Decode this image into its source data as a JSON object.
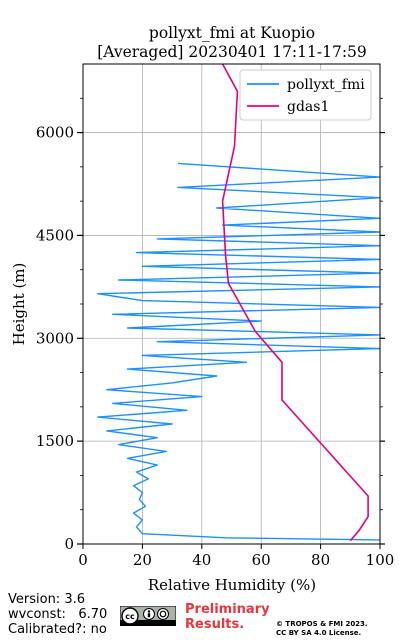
{
  "chart_data": {
    "type": "line",
    "title_line1": "pollyxt_fmi at Kuopio",
    "title_line2": "[Averaged] 20230401 17:11-17:59",
    "xlabel": "Relative Humidity (%)",
    "ylabel": "Height (m)",
    "xlim": [
      0,
      100
    ],
    "ylim": [
      0,
      7000
    ],
    "xticks": [
      "0",
      "20",
      "40",
      "60",
      "80",
      "100"
    ],
    "yticks": [
      "0",
      "1500",
      "3000",
      "4500",
      "6000"
    ],
    "grid": true,
    "legend_position": "top-right",
    "series": [
      {
        "name": "pollyxt_fmi",
        "color": "#1e90ff",
        "points": [
          [
            100,
            60
          ],
          [
            48,
            90
          ],
          [
            20,
            150
          ],
          [
            18,
            250
          ],
          [
            20,
            350
          ],
          [
            17,
            450
          ],
          [
            21,
            550
          ],
          [
            19,
            650
          ],
          [
            20,
            750
          ],
          [
            17,
            850
          ],
          [
            22,
            950
          ],
          [
            18,
            1050
          ],
          [
            25,
            1150
          ],
          [
            15,
            1250
          ],
          [
            28,
            1350
          ],
          [
            12,
            1450
          ],
          [
            25,
            1550
          ],
          [
            8,
            1650
          ],
          [
            30,
            1750
          ],
          [
            5,
            1850
          ],
          [
            35,
            1950
          ],
          [
            10,
            2050
          ],
          [
            40,
            2150
          ],
          [
            8,
            2250
          ],
          [
            30,
            2350
          ],
          [
            45,
            2450
          ],
          [
            15,
            2550
          ],
          [
            55,
            2650
          ],
          [
            20,
            2750
          ],
          [
            100,
            2850
          ],
          [
            25,
            2950
          ],
          [
            100,
            3050
          ],
          [
            15,
            3150
          ],
          [
            60,
            3250
          ],
          [
            10,
            3350
          ],
          [
            100,
            3450
          ],
          [
            20,
            3550
          ],
          [
            5,
            3650
          ],
          [
            100,
            3750
          ],
          [
            12,
            3850
          ],
          [
            100,
            3950
          ],
          [
            20,
            4050
          ],
          [
            100,
            4150
          ],
          [
            18,
            4250
          ],
          [
            100,
            4350
          ],
          [
            25,
            4450
          ],
          [
            100,
            4550
          ],
          [
            47,
            4650
          ],
          [
            100,
            4750
          ],
          [
            45,
            4900
          ],
          [
            100,
            5050
          ],
          [
            32,
            5200
          ],
          [
            100,
            5350
          ],
          [
            32,
            5550
          ]
        ]
      },
      {
        "name": "gdas1",
        "color": "#e6007e",
        "points": [
          [
            90,
            50
          ],
          [
            93,
            200
          ],
          [
            96,
            400
          ],
          [
            96,
            700
          ],
          [
            67,
            2100
          ],
          [
            67,
            2650
          ],
          [
            58,
            3100
          ],
          [
            49,
            3800
          ],
          [
            48,
            4200
          ],
          [
            47,
            5000
          ],
          [
            51,
            5800
          ],
          [
            52,
            6600
          ],
          [
            47,
            7000
          ]
        ]
      }
    ]
  },
  "footer": {
    "version": "Version: 3.6",
    "wvconst": "wvconst:   6.70",
    "calibrated": "Calibrated?: no",
    "preliminary_line1": "Preliminary",
    "preliminary_line2": "Results.",
    "copyright_line1": "© TROPOS & FMI 2023.",
    "copyright_line2": "CC BY SA 4.0 License.",
    "license_badge": "cc-by-sa"
  }
}
